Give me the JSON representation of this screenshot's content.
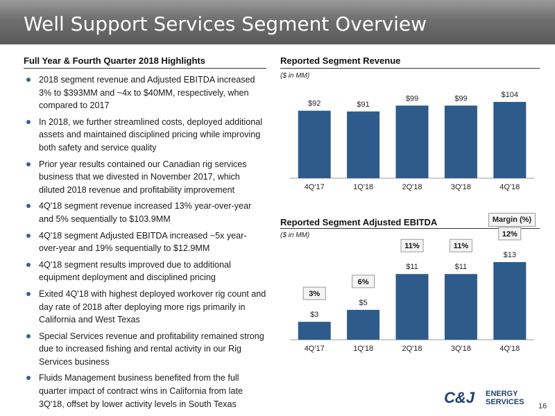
{
  "title": "Well Support Services Segment Overview",
  "left": {
    "heading": "Full Year & Fourth Quarter 2018 Highlights",
    "bullets": [
      "2018 segment revenue and Adjusted EBITDA increased 3% to $393MM and ~4x to $40MM, respectively, when compared to 2017",
      "In 2018, we further streamlined costs, deployed additional assets and maintained disciplined pricing while improving both safety and service quality",
      "Prior year results contained our Canadian rig services business that we divested in November 2017, which diluted 2018 revenue and profitability improvement",
      "4Q'18 segment revenue increased 13% year-over-year and 5% sequentially to $103.9MM",
      "4Q'18 segment Adjusted EBITDA increased ~5x year-over-year and 19% sequentially to $12.9MM",
      "4Q'18 segment results improved due to additional equipment deployment and disciplined pricing",
      "Exited 4Q'18 with highest deployed workover rig count and day rate of 2018 after deploying more rigs primarily in California and West Texas",
      "Special Services revenue and profitability remained strong due to increased fishing and rental activity in our Rig Services business",
      "Fluids Management business benefited from the full quarter impact of contract wins in California from late 3Q'18, offset by lower activity levels in South Texas"
    ]
  },
  "colors": {
    "bar": "#2e5b8a",
    "bullet": "#3c5f91",
    "title_bg": "#6e6e6e"
  },
  "chart_data": [
    {
      "type": "bar",
      "title": "Reported Segment Revenue",
      "subtitle": "($ in MM)",
      "categories": [
        "4Q'17",
        "1Q'18",
        "2Q'18",
        "3Q'18",
        "4Q'18"
      ],
      "values": [
        92,
        91,
        99,
        99,
        104
      ],
      "labels": [
        "$92",
        "$91",
        "$99",
        "$99",
        "$104"
      ],
      "ylim": [
        0,
        104
      ]
    },
    {
      "type": "bar",
      "title": "Reported Segment Adjusted EBITDA",
      "subtitle": "($ in MM)",
      "legend": "Margin (%)",
      "categories": [
        "4Q'17",
        "1Q'18",
        "2Q'18",
        "3Q'18",
        "4Q'18"
      ],
      "values": [
        3,
        5,
        11,
        11,
        13
      ],
      "labels": [
        "$3",
        "$5",
        "$11",
        "$11",
        "$13"
      ],
      "margins": [
        "3%",
        "6%",
        "11%",
        "11%",
        "12%"
      ],
      "ylim": [
        0,
        13
      ]
    }
  ],
  "logo": {
    "mark": "C&J",
    "line1": "ENERGY",
    "line2": "SERVICES"
  },
  "page_number": "16"
}
